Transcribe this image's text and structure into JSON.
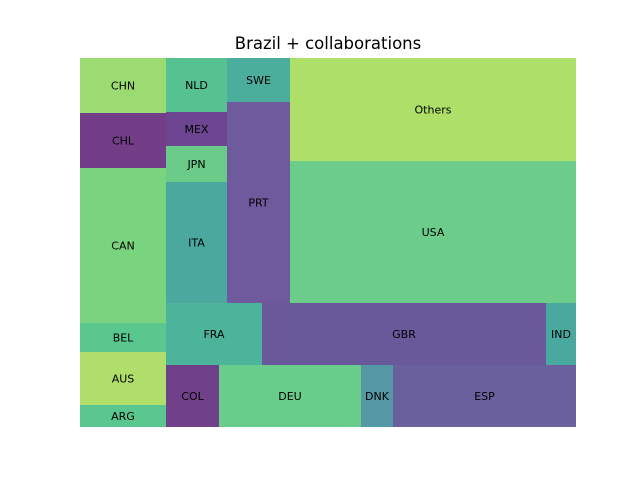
{
  "chart_data": {
    "type": "treemap",
    "title": "Brazil + collaborations",
    "grid": false,
    "cells": [
      {
        "label": "ARG",
        "color": "#59c78f"
      },
      {
        "label": "AUS",
        "color": "#b0de6a"
      },
      {
        "label": "BEL",
        "color": "#5ac78f"
      },
      {
        "label": "CAN",
        "color": "#7ad37e"
      },
      {
        "label": "CHL",
        "color": "#733e87"
      },
      {
        "label": "CHN",
        "color": "#9bdb71"
      },
      {
        "label": "COL",
        "color": "#70418a"
      },
      {
        "label": "DEU",
        "color": "#68cc8a"
      },
      {
        "label": "DNK",
        "color": "#5497a5"
      },
      {
        "label": "ESP",
        "color": "#6a609d"
      },
      {
        "label": "FRA",
        "color": "#4bb49b"
      },
      {
        "label": "GBR",
        "color": "#69599b"
      },
      {
        "label": "IND",
        "color": "#4aa99f"
      },
      {
        "label": "ITA",
        "color": "#4aa89f"
      },
      {
        "label": "JPN",
        "color": "#6acb89"
      },
      {
        "label": "MEX",
        "color": "#6c4691"
      },
      {
        "label": "NLD",
        "color": "#57c291"
      },
      {
        "label": "PRT",
        "color": "#6f5a9d"
      },
      {
        "label": "SWE",
        "color": "#4bae9d"
      },
      {
        "label": "USA",
        "color": "#6ccd8a"
      },
      {
        "label": "Others",
        "color": "#aee069"
      }
    ]
  }
}
